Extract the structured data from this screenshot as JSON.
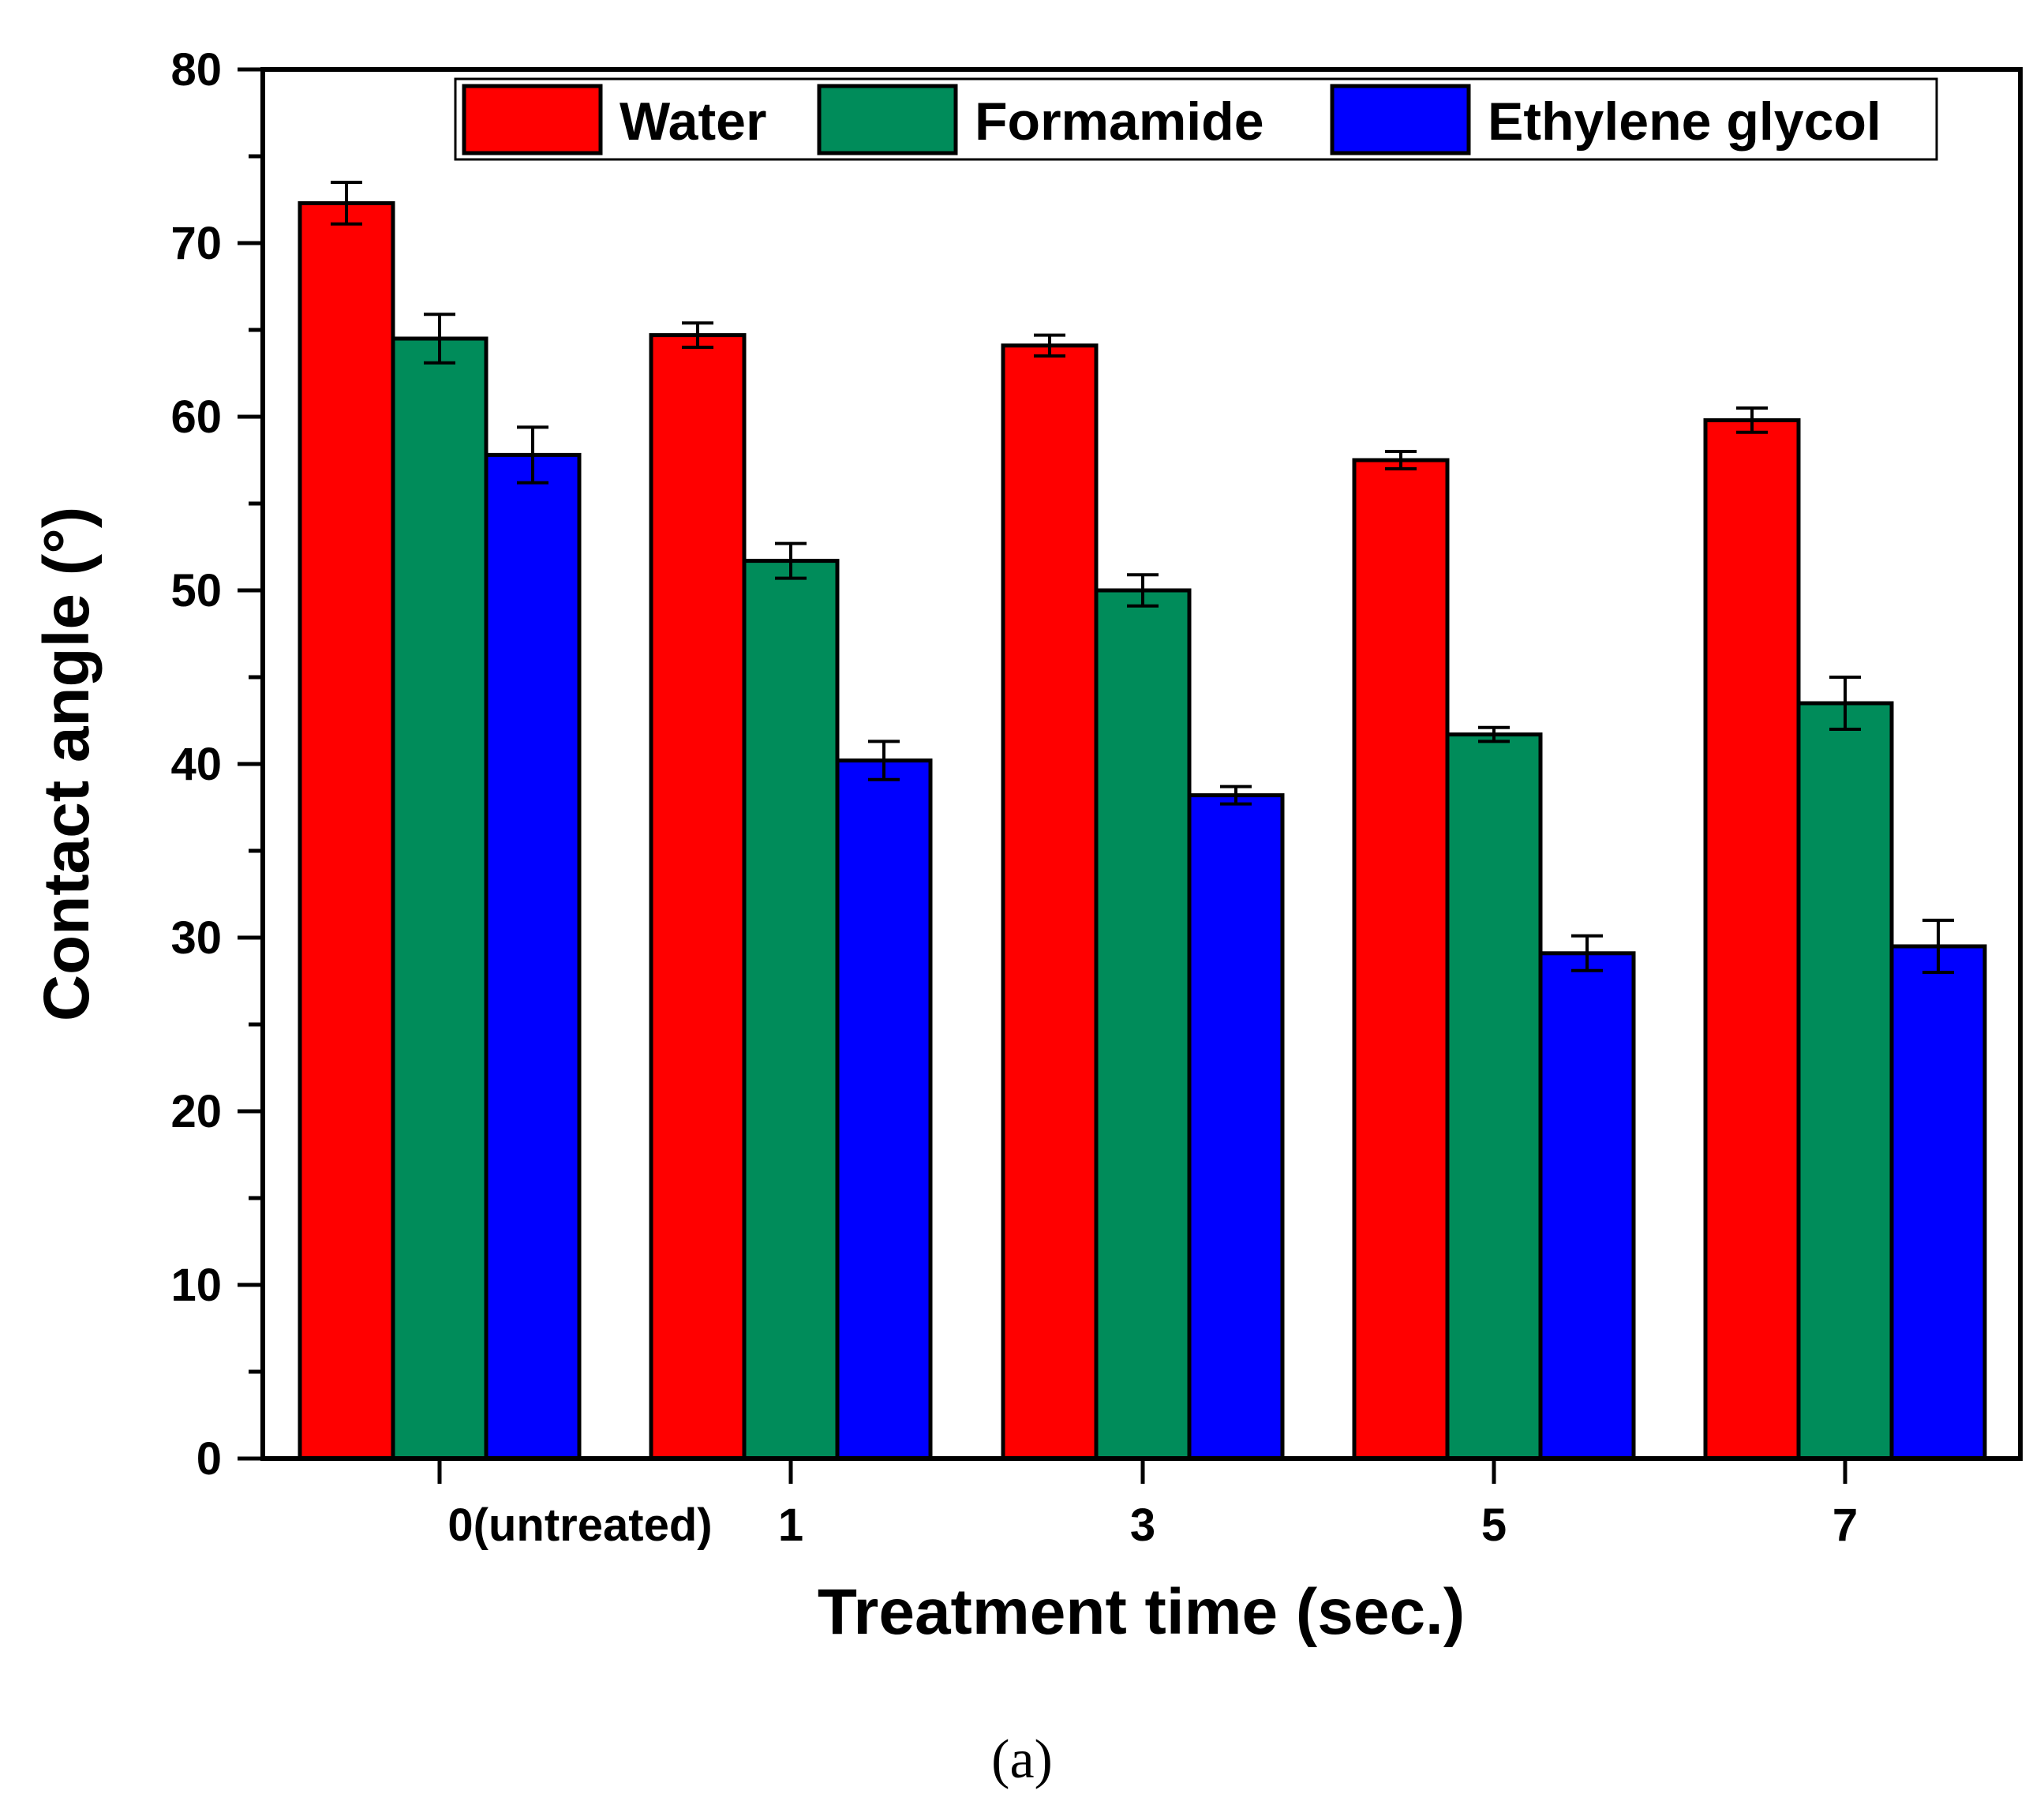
{
  "chart_data": {
    "type": "bar",
    "title": "",
    "xlabel": "Treatment time (sec.)",
    "ylabel": "Contact angle (°)",
    "ylim": [
      0,
      80
    ],
    "yticks": [
      0,
      10,
      20,
      30,
      40,
      50,
      60,
      70,
      80
    ],
    "ytick_labels": [
      "0",
      "10",
      "20",
      "30",
      "40",
      "50",
      "60",
      "70",
      "80"
    ],
    "categories": [
      "0(untreated)",
      "1",
      "3",
      "5",
      "7"
    ],
    "legend_position": "top-right",
    "series": [
      {
        "name": "Water",
        "color": "#ff0000",
        "values": [
          72.3,
          64.7,
          64.1,
          57.5,
          59.8
        ],
        "errors": [
          1.2,
          0.7,
          0.6,
          0.5,
          0.7
        ]
      },
      {
        "name": "Formamide",
        "color": "#008c5a",
        "values": [
          64.5,
          51.7,
          50.0,
          41.7,
          43.5
        ],
        "errors": [
          1.4,
          1.0,
          0.9,
          0.4,
          1.5
        ]
      },
      {
        "name": "Ethylene glycol",
        "color": "#0000ff",
        "values": [
          57.8,
          40.2,
          38.2,
          29.1,
          29.5
        ],
        "errors": [
          1.6,
          1.1,
          0.5,
          1.0,
          1.5
        ]
      }
    ],
    "caption": "(a)"
  }
}
